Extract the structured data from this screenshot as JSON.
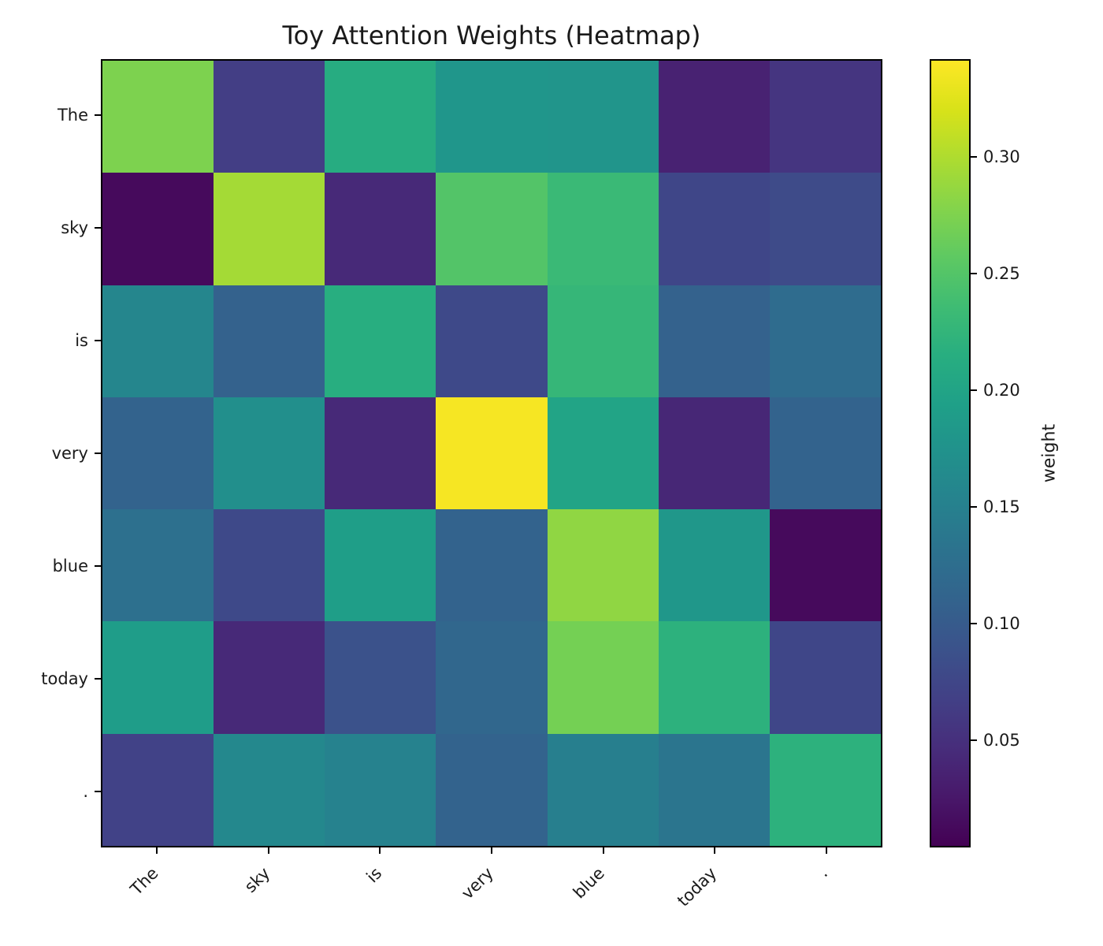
{
  "title": "Toy Attention Weights (Heatmap)",
  "chart_data": {
    "type": "heatmap",
    "title": "Toy Attention Weights (Heatmap)",
    "x_tokens": [
      "The",
      "sky",
      "is",
      "very",
      "blue",
      "today",
      "."
    ],
    "y_tokens": [
      "The",
      "sky",
      "is",
      "very",
      "blue",
      "today",
      "."
    ],
    "matrix": [
      [
        0.275,
        0.065,
        0.212,
        0.18,
        0.178,
        0.035,
        0.055
      ],
      [
        0.012,
        0.295,
        0.042,
        0.25,
        0.232,
        0.075,
        0.08
      ],
      [
        0.158,
        0.108,
        0.215,
        0.078,
        0.228,
        0.108,
        0.122
      ],
      [
        0.11,
        0.17,
        0.042,
        0.338,
        0.2,
        0.04,
        0.11
      ],
      [
        0.128,
        0.078,
        0.192,
        0.11,
        0.285,
        0.182,
        0.012
      ],
      [
        0.19,
        0.042,
        0.088,
        0.115,
        0.27,
        0.22,
        0.075
      ],
      [
        0.07,
        0.16,
        0.152,
        0.11,
        0.148,
        0.135,
        0.22
      ]
    ],
    "colormap": "viridis",
    "clim": {
      "vmin": 0.004,
      "vmax": 0.342
    },
    "colorbar": {
      "label": "weight",
      "ticks": [
        0.05,
        0.1,
        0.15,
        0.2,
        0.25,
        0.3
      ],
      "tick_labels": [
        "0.05",
        "0.10",
        "0.15",
        "0.20",
        "0.25",
        "0.30"
      ]
    },
    "layout": {
      "grid": false,
      "x_label_rotation_deg": 45,
      "colorbar_position": "right",
      "background": "#ffffff",
      "frame_color": "#000000"
    }
  }
}
